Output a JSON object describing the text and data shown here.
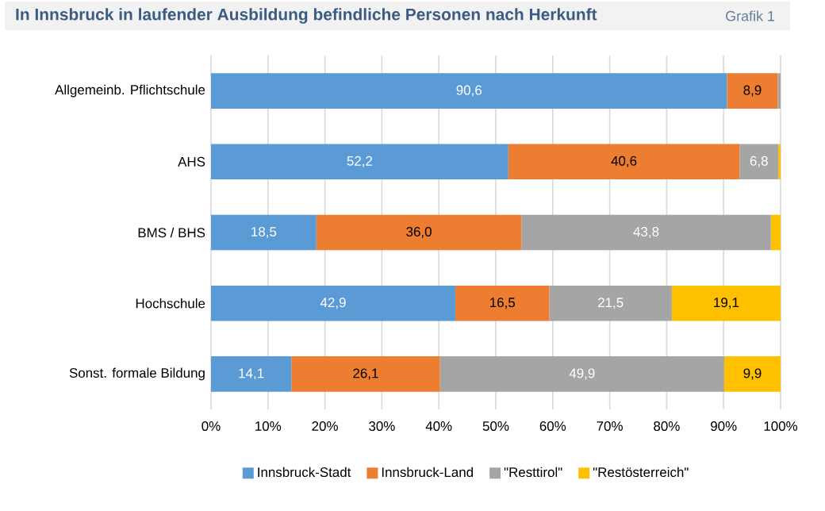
{
  "chart_data": {
    "type": "bar",
    "orientation": "horizontal",
    "stacked": true,
    "title": "In Innsbruck in laufender Ausbildung befindliche Personen nach Herkunft",
    "annotations": [
      "Grafik 1"
    ],
    "categories": [
      "Allgemeinb. Pflichtschule",
      "AHS",
      "BMS / BHS",
      "Hochschule",
      "Sonst. formale Bildung"
    ],
    "series": [
      {
        "name": "Innsbruck-Stadt",
        "color": "#5b9bd5",
        "values": [
          90.6,
          52.2,
          18.5,
          42.9,
          14.1
        ],
        "value_labels": [
          "90,6",
          "52,2",
          "18,5",
          "42,9",
          "14,1"
        ]
      },
      {
        "name": "Innsbruck-Land",
        "color": "#ed7d31",
        "values": [
          8.9,
          40.6,
          36.0,
          16.5,
          26.1
        ],
        "value_labels": [
          "8,9",
          "40,6",
          "36,0",
          "16,5",
          "26,1"
        ]
      },
      {
        "name": "\"Resttirol\"",
        "color": "#a5a5a5",
        "values": [
          0.5,
          6.8,
          43.8,
          21.5,
          49.9
        ],
        "value_labels": [
          null,
          "6,8",
          "43,8",
          "21,5",
          "49,9"
        ]
      },
      {
        "name": "\"Restösterreich\"",
        "color": "#ffc000",
        "values": [
          0,
          0.4,
          1.7,
          19.1,
          9.9
        ],
        "value_labels": [
          null,
          null,
          null,
          "19,1",
          "9,9"
        ]
      }
    ],
    "xlim": [
      0,
      100
    ],
    "xticks": [
      {
        "value": 0,
        "label": "0%"
      },
      {
        "value": 10,
        "label": "10%"
      },
      {
        "value": 20,
        "label": "20%"
      },
      {
        "value": 30,
        "label": "30%"
      },
      {
        "value": 40,
        "label": "40%"
      },
      {
        "value": 50,
        "label": "50%"
      },
      {
        "value": 60,
        "label": "60%"
      },
      {
        "value": 70,
        "label": "70%"
      },
      {
        "value": 80,
        "label": "80%"
      },
      {
        "value": 90,
        "label": "90%"
      },
      {
        "value": 100,
        "label": "100%"
      }
    ],
    "grid": "x",
    "legend": "bottom"
  }
}
